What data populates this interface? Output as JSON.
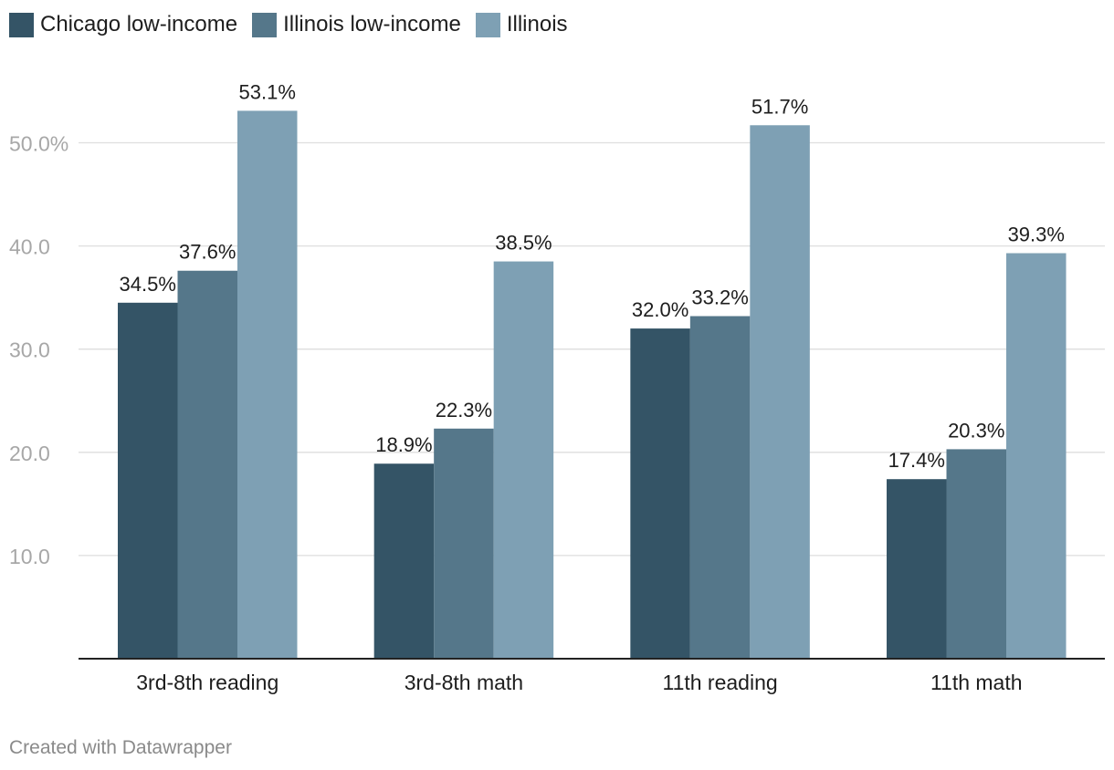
{
  "legend": [
    {
      "label": "Chicago low-income",
      "color": "#345466"
    },
    {
      "label": "Illinois low-income",
      "color": "#55778a"
    },
    {
      "label": "Illinois",
      "color": "#7ea0b4"
    }
  ],
  "chart_data": {
    "type": "bar",
    "categories": [
      "3rd-8th reading",
      "3rd-8th math",
      "11th reading",
      "11th math"
    ],
    "series": [
      {
        "name": "Chicago low-income",
        "values": [
          34.5,
          18.9,
          32.0,
          17.4
        ],
        "color": "#345466"
      },
      {
        "name": "Illinois low-income",
        "values": [
          37.6,
          22.3,
          33.2,
          20.3
        ],
        "color": "#55778a"
      },
      {
        "name": "Illinois",
        "values": [
          53.1,
          38.5,
          51.7,
          39.3
        ],
        "color": "#7ea0b4"
      }
    ],
    "value_labels": [
      [
        "34.5%",
        "18.9%",
        "32.0%",
        "17.4%"
      ],
      [
        "37.6%",
        "22.3%",
        "33.2%",
        "20.3%"
      ],
      [
        "53.1%",
        "38.5%",
        "51.7%",
        "39.3%"
      ]
    ],
    "yticks": [
      10,
      20,
      30,
      40,
      50
    ],
    "ytick_labels": [
      "10.0",
      "20.0",
      "30.0",
      "40.0",
      "50.0%"
    ],
    "ylim": [
      0,
      56
    ],
    "title": "",
    "xlabel": "",
    "ylabel": "",
    "grid": true
  },
  "footer": {
    "credit": "Created with Datawrapper"
  }
}
